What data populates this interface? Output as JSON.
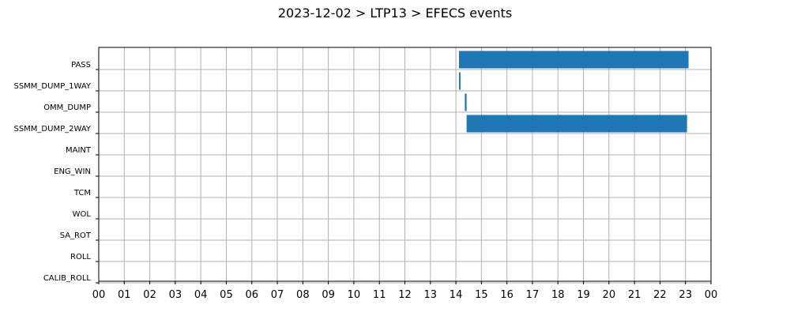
{
  "chart_data": {
    "type": "bar",
    "orientation": "horizontal-gantt",
    "title": "2023-12-02 > LTP13 > EFECS events",
    "xlabel": "",
    "ylabel": "",
    "x_range_hours": [
      0,
      24
    ],
    "x_tick_labels": [
      "00",
      "01",
      "02",
      "03",
      "04",
      "05",
      "06",
      "07",
      "08",
      "09",
      "10",
      "11",
      "12",
      "13",
      "14",
      "15",
      "16",
      "17",
      "18",
      "19",
      "20",
      "21",
      "22",
      "23",
      "00"
    ],
    "categories": [
      "PASS",
      "SSMM_DUMP_1WAY",
      "OMM_DUMP",
      "SSMM_DUMP_2WAY",
      "MAINT",
      "ENG_WIN",
      "TCM",
      "WOL",
      "SA_ROT",
      "ROLL",
      "CALIB_ROLL"
    ],
    "events": [
      {
        "category": "PASS",
        "start": 14.12,
        "end": 23.12
      },
      {
        "category": "SSMM_DUMP_1WAY",
        "start": 14.12,
        "end": 14.18
      },
      {
        "category": "OMM_DUMP",
        "start": 14.35,
        "end": 14.42
      },
      {
        "category": "SSMM_DUMP_2WAY",
        "start": 14.42,
        "end": 23.06
      }
    ],
    "grid": true,
    "color": "#1f77b4"
  }
}
